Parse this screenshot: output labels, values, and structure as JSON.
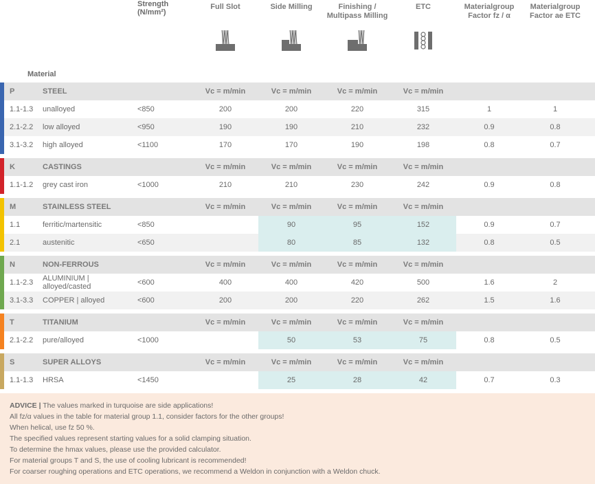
{
  "headers": {
    "material": "Material",
    "strength": "Strength (N/mm²)",
    "methods": [
      {
        "key": "fullslot",
        "label": "Full Slot"
      },
      {
        "key": "side",
        "label": "Side Milling"
      },
      {
        "key": "finishing",
        "label": "Finishing / Multipass Milling"
      },
      {
        "key": "etc",
        "label": "ETC"
      }
    ],
    "factor_fz": "Materialgroup Factor fz / α",
    "factor_ae": "Materialgroup Factor ae ETC",
    "vc_label": "Vc = m/min"
  },
  "colors": {
    "P": "#3a66b0",
    "K": "#d2232a",
    "M": "#f3c300",
    "N": "#6fa84f",
    "T": "#f58220",
    "S": "#c8a860",
    "side_bg": "#daeeee",
    "cat_bg": "#e3e3e3",
    "odd_bg": "#f1f1f1",
    "advice_bg": "#fbeade",
    "text": "#6a6a6a",
    "icon_fill": "#6e6e6e",
    "icon_light": "#c8c8c8"
  },
  "sections": [
    {
      "code": "P",
      "name": "STEEL",
      "rows": [
        {
          "code": "1.1-1.3",
          "mat": "unalloyed",
          "strength": "<850",
          "v": [
            "200",
            "200",
            "220",
            "315"
          ],
          "fz": "1",
          "ae": "1",
          "side": [
            false,
            false,
            false,
            false
          ]
        },
        {
          "code": "2.1-2.2",
          "mat": "low alloyed",
          "strength": "<950",
          "v": [
            "190",
            "190",
            "210",
            "232"
          ],
          "fz": "0.9",
          "ae": "0.8",
          "side": [
            false,
            false,
            false,
            false
          ]
        },
        {
          "code": "3.1-3.2",
          "mat": "high alloyed",
          "strength": "<1100",
          "v": [
            "170",
            "170",
            "190",
            "198"
          ],
          "fz": "0.8",
          "ae": "0.7",
          "side": [
            false,
            false,
            false,
            false
          ]
        }
      ]
    },
    {
      "code": "K",
      "name": "CASTINGS",
      "rows": [
        {
          "code": "1.1-1.2",
          "mat": "grey cast iron",
          "strength": "<1000",
          "v": [
            "210",
            "210",
            "230",
            "242"
          ],
          "fz": "0.9",
          "ae": "0.8",
          "side": [
            false,
            false,
            false,
            false
          ]
        }
      ]
    },
    {
      "code": "M",
      "name": "STAINLESS STEEL",
      "rows": [
        {
          "code": "1.1",
          "mat": "ferritic/martensitic",
          "strength": "<850",
          "v": [
            "",
            "90",
            "95",
            "152"
          ],
          "fz": "0.9",
          "ae": "0.7",
          "side": [
            false,
            true,
            true,
            true
          ]
        },
        {
          "code": "2.1",
          "mat": "austenitic",
          "strength": "<650",
          "v": [
            "",
            "80",
            "85",
            "132"
          ],
          "fz": "0.8",
          "ae": "0.5",
          "side": [
            false,
            true,
            true,
            true
          ]
        }
      ]
    },
    {
      "code": "N",
      "name": "NON-FERROUS",
      "rows": [
        {
          "code": "1.1-2.3",
          "mat": "ALUMINIUM | alloyed/casted",
          "strength": "<600",
          "v": [
            "400",
            "400",
            "420",
            "500"
          ],
          "fz": "1.6",
          "ae": "2",
          "side": [
            false,
            false,
            false,
            false
          ]
        },
        {
          "code": "3.1-3.3",
          "mat": "COPPER | alloyed",
          "strength": "<600",
          "v": [
            "200",
            "200",
            "220",
            "262"
          ],
          "fz": "1.5",
          "ae": "1.6",
          "side": [
            false,
            false,
            false,
            false
          ]
        }
      ]
    },
    {
      "code": "T",
      "name": "TITANIUM",
      "rows": [
        {
          "code": "2.1-2.2",
          "mat": "pure/alloyed",
          "strength": "<1000",
          "v": [
            "",
            "50",
            "53",
            "75"
          ],
          "fz": "0.8",
          "ae": "0.5",
          "side": [
            false,
            true,
            true,
            true
          ]
        }
      ]
    },
    {
      "code": "S",
      "name": "SUPER ALLOYS",
      "rows": [
        {
          "code": "1.1-1.3",
          "mat": "HRSA",
          "strength": "<1450",
          "v": [
            "",
            "25",
            "28",
            "42"
          ],
          "fz": "0.7",
          "ae": "0.3",
          "side": [
            false,
            true,
            true,
            true
          ]
        }
      ]
    }
  ],
  "advice": {
    "head": "ADVICE  |",
    "lines": [
      "  The values marked in turquoise are side applications!",
      "All fz/α values in the table for material group 1.1, consider factors for the other groups!",
      "When helical, use fz 50 %.",
      "The specified values represent starting values for a solid clamping situation.",
      "To determine the hmax values, please use the provided calculator.",
      "For material groups T and S, the use of cooling lubricant is recommended!",
      "For coarser roughing operations and ETC operations, we recommend a Weldon in conjunction with a Weldon chuck."
    ]
  }
}
